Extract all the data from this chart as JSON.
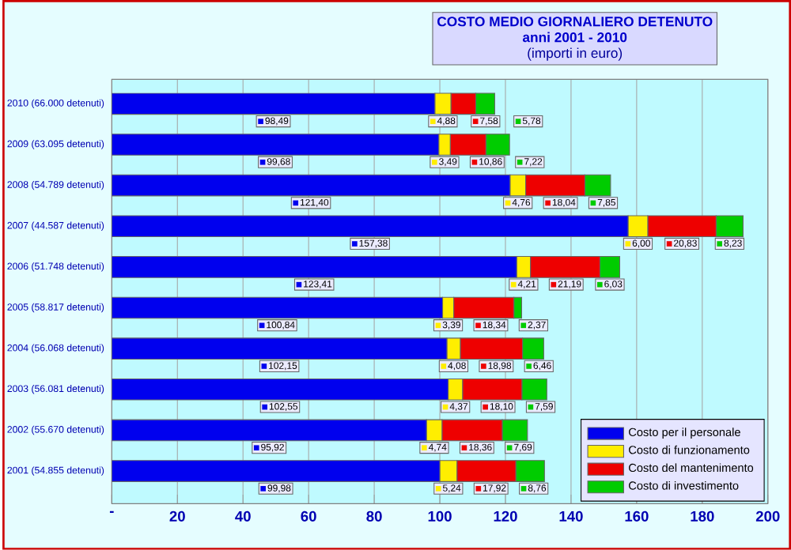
{
  "chart_data": {
    "type": "bar",
    "orientation": "horizontal",
    "stacked": true,
    "title": "COSTO MEDIO GIORNALIERO DETENUTO",
    "subtitle": "anni 2001 - 2010",
    "annotations": [
      "(importi in euro)"
    ],
    "categories": [
      "2010 (66.000 detenuti)",
      "2009 (63.095 detenuti)",
      "2008 (54.789 detenuti)",
      "2007 (44.587 detenuti)",
      "2006 (51.748 detenuti)",
      "2005 (58.817 detenuti)",
      "2004 (56.068 detenuti)",
      "2003 (56.081 detenuti)",
      "2002 (55.670 detenuti)",
      "2001 (54.855 detenuti)"
    ],
    "series": [
      {
        "name": "Costo per il personale",
        "color": "#0000ee",
        "values": [
          98.49,
          99.68,
          121.4,
          157.38,
          123.41,
          100.84,
          102.15,
          102.55,
          95.92,
          99.98
        ],
        "value_labels": [
          "98,49",
          "99,68",
          "121,40",
          "157,38",
          "123,41",
          "100,84",
          "102,15",
          "102,55",
          "95,92",
          "99,98"
        ]
      },
      {
        "name": "Costo di funzionamento",
        "color": "#ffee00",
        "values": [
          4.88,
          3.49,
          4.76,
          6.0,
          4.21,
          3.39,
          4.08,
          4.37,
          4.74,
          5.24
        ],
        "value_labels": [
          "4,88",
          "3,49",
          "4,76",
          "6,00",
          "4,21",
          "3,39",
          "4,08",
          "4,37",
          "4,74",
          "5,24"
        ]
      },
      {
        "name": "Costo del mantenimento",
        "color": "#ee0000",
        "values": [
          7.58,
          10.86,
          18.04,
          20.83,
          21.19,
          18.34,
          18.98,
          18.1,
          18.36,
          17.92
        ],
        "value_labels": [
          "7,58",
          "10,86",
          "18,04",
          "20,83",
          "21,19",
          "18,34",
          "18,98",
          "18,10",
          "18,36",
          "17,92"
        ]
      },
      {
        "name": "Costo di investimento",
        "color": "#00cc00",
        "values": [
          5.78,
          7.22,
          7.85,
          8.23,
          6.03,
          2.37,
          6.46,
          7.59,
          7.69,
          8.76
        ],
        "value_labels": [
          "5,78",
          "7,22",
          "7,85",
          "8,23",
          "6,03",
          "2,37",
          "6,46",
          "7,59",
          "7,69",
          "8,76"
        ]
      }
    ],
    "xlim": [
      0,
      200
    ],
    "xticks": [
      {
        "value": 0,
        "label": "-"
      },
      20,
      40,
      60,
      80,
      100,
      120,
      140,
      160,
      180,
      200
    ],
    "grid": "x",
    "legend": "bottom right"
  }
}
